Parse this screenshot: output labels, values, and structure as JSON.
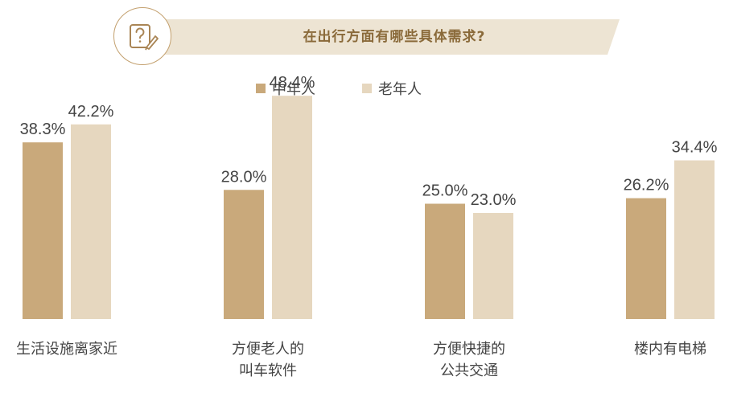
{
  "header": {
    "title": "在出行方面有哪些具体需求?",
    "accent_color": "#c3a06e",
    "banner_color": "#ede4d3"
  },
  "icons": {
    "badge": "question-edit-icon"
  },
  "chart_data": {
    "type": "bar",
    "title": "在出行方面有哪些具体需求?",
    "categories": [
      "生活设施离家近",
      "方便老人的叫车软件",
      "方便快捷的公共交通",
      "楼内有电梯"
    ],
    "category_lines": [
      [
        "生活设施离家近"
      ],
      [
        "方便老人的",
        "叫车软件"
      ],
      [
        "方便快捷的",
        "公共交通"
      ],
      [
        "楼内有电梯"
      ]
    ],
    "series": [
      {
        "name": "中年人",
        "values": [
          38.3,
          28.0,
          25.0,
          26.2
        ],
        "labels": [
          "38.3%",
          "28.0%",
          "25.0%",
          "26.2%"
        ],
        "color": "#c9a97b"
      },
      {
        "name": "老年人",
        "values": [
          42.2,
          48.4,
          23.0,
          34.4
        ],
        "labels": [
          "42.2%",
          "48.4%",
          "23.0%",
          "34.4%"
        ],
        "color": "#e6d7bf"
      }
    ],
    "legend_position": "top-center",
    "ylim": [
      0,
      50
    ],
    "grid": false,
    "xlabel": "",
    "ylabel": ""
  }
}
